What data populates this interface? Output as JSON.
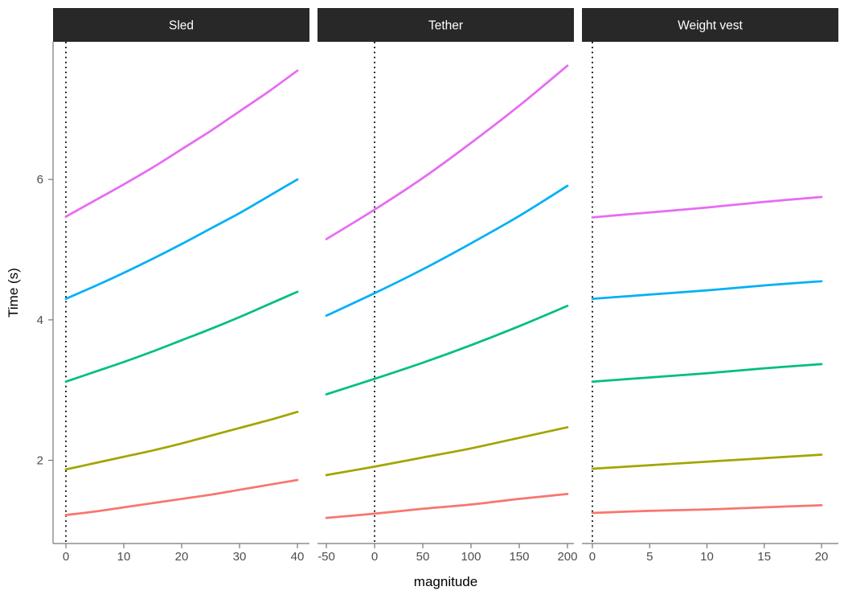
{
  "chart_data": {
    "type": "line",
    "title": "",
    "xlabel": "magnitude",
    "ylabel": "Time (s)",
    "y_ticks": [
      2,
      4,
      6
    ],
    "ylim": [
      0.815,
      7.96
    ],
    "grid": "off",
    "legend": "none",
    "facets": [
      {
        "label": "Sled",
        "xlim": [
          -2.22,
          42.08
        ],
        "x_ticks": [
          0,
          10,
          20,
          30,
          40
        ],
        "vline_dotted_x": 0,
        "series": [
          {
            "id": "line-1",
            "color": "#F8766D",
            "x": [
              0,
              5,
              10,
              15,
              20,
              25,
              30,
              35,
              40
            ],
            "y": [
              1.22,
              1.27,
              1.33,
              1.39,
              1.45,
              1.51,
              1.58,
              1.65,
              1.72
            ]
          },
          {
            "id": "line-2",
            "color": "#A3A500",
            "x": [
              0,
              5,
              10,
              15,
              20,
              25,
              30,
              35,
              40
            ],
            "y": [
              1.87,
              1.96,
              2.05,
              2.14,
              2.24,
              2.35,
              2.46,
              2.57,
              2.69
            ]
          },
          {
            "id": "line-3",
            "color": "#00BF7D",
            "x": [
              0,
              5,
              10,
              15,
              20,
              25,
              30,
              35,
              40
            ],
            "y": [
              3.12,
              3.26,
              3.4,
              3.55,
              3.71,
              3.87,
              4.04,
              4.22,
              4.4
            ]
          },
          {
            "id": "line-4",
            "color": "#00B0F6",
            "x": [
              0,
              5,
              10,
              15,
              20,
              25,
              30,
              35,
              40
            ],
            "y": [
              4.3,
              4.48,
              4.67,
              4.87,
              5.08,
              5.3,
              5.52,
              5.76,
              6.0
            ]
          },
          {
            "id": "line-5",
            "color": "#E76BF3",
            "x": [
              0,
              5,
              10,
              15,
              20,
              25,
              30,
              35,
              40
            ],
            "y": [
              5.47,
              5.7,
              5.93,
              6.17,
              6.43,
              6.69,
              6.97,
              7.25,
              7.55
            ]
          }
        ]
      },
      {
        "label": "Tether",
        "xlim": [
          -59.2,
          206.7
        ],
        "x_ticks": [
          -50,
          0,
          50,
          100,
          150,
          200
        ],
        "vline_dotted_x": 0,
        "series": [
          {
            "id": "line-1",
            "color": "#F8766D",
            "x": [
              -50,
              0,
              50,
              100,
              150,
              200
            ],
            "y": [
              1.18,
              1.24,
              1.31,
              1.37,
              1.45,
              1.52
            ]
          },
          {
            "id": "line-2",
            "color": "#A3A500",
            "x": [
              -50,
              0,
              50,
              100,
              150,
              200
            ],
            "y": [
              1.79,
              1.91,
              2.04,
              2.17,
              2.32,
              2.47
            ]
          },
          {
            "id": "line-3",
            "color": "#00BF7D",
            "x": [
              -50,
              0,
              50,
              100,
              150,
              200
            ],
            "y": [
              2.94,
              3.16,
              3.39,
              3.64,
              3.91,
              4.2
            ]
          },
          {
            "id": "line-4",
            "color": "#00B0F6",
            "x": [
              -50,
              0,
              50,
              100,
              150,
              200
            ],
            "y": [
              4.06,
              4.38,
              4.72,
              5.09,
              5.48,
              5.91
            ]
          },
          {
            "id": "line-5",
            "color": "#E76BF3",
            "x": [
              -50,
              0,
              50,
              100,
              150,
              200
            ],
            "y": [
              5.15,
              5.57,
              6.02,
              6.52,
              7.05,
              7.62
            ]
          }
        ]
      },
      {
        "label": "Weight vest",
        "xlim": [
          -0.91,
          21.47
        ],
        "x_ticks": [
          0,
          5,
          10,
          15,
          20
        ],
        "vline_dotted_x": 0,
        "series": [
          {
            "id": "line-1",
            "color": "#F8766D",
            "x": [
              0,
              5,
              10,
              15,
              20
            ],
            "y": [
              1.25,
              1.28,
              1.3,
              1.33,
              1.36
            ]
          },
          {
            "id": "line-2",
            "color": "#A3A500",
            "x": [
              0,
              5,
              10,
              15,
              20
            ],
            "y": [
              1.88,
              1.93,
              1.98,
              2.03,
              2.08
            ]
          },
          {
            "id": "line-3",
            "color": "#00BF7D",
            "x": [
              0,
              5,
              10,
              15,
              20
            ],
            "y": [
              3.12,
              3.18,
              3.24,
              3.31,
              3.37
            ]
          },
          {
            "id": "line-4",
            "color": "#00B0F6",
            "x": [
              0,
              5,
              10,
              15,
              20
            ],
            "y": [
              4.3,
              4.36,
              4.42,
              4.49,
              4.55
            ]
          },
          {
            "id": "line-5",
            "color": "#E76BF3",
            "x": [
              0,
              5,
              10,
              15,
              20
            ],
            "y": [
              5.46,
              5.53,
              5.6,
              5.68,
              5.75
            ]
          }
        ]
      }
    ],
    "style": {
      "strip_fill": "#282828",
      "strip_text_color": "#FFFFFF",
      "axis_line_color": "#777777",
      "tick_mark_color": "#777777",
      "tick_label_color": "#4D4D4D",
      "axis_title_color": "#000000",
      "vline_color": "#000000",
      "background": "#FFFFFF"
    }
  }
}
